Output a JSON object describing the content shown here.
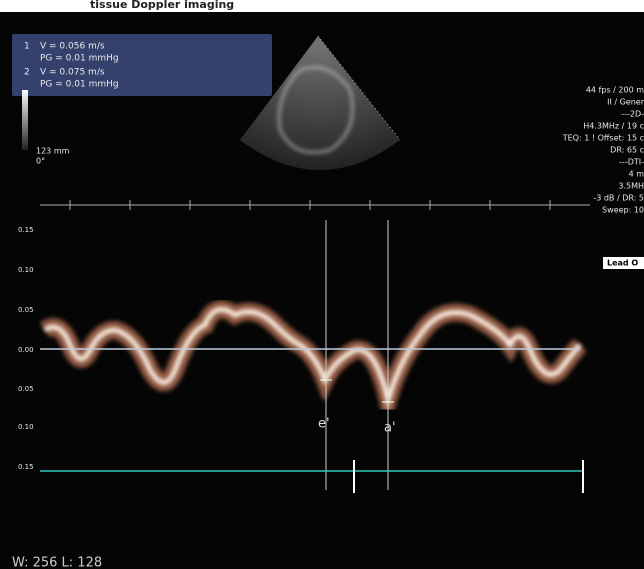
{
  "caption": "tissue Doppler imaging",
  "measurements": [
    {
      "index": "1",
      "velocity": "V = 0.056 m/s",
      "gradient": "PG = 0.01 mmHg"
    },
    {
      "index": "2",
      "velocity": "V = 0.075 m/s",
      "gradient": "PG = 0.01 mmHg"
    }
  ],
  "depth": "123 mm",
  "angle": "0°",
  "settings": [
    "44 fps / 200 m",
    "II / Gener",
    "---2D-",
    "H4.3MHz / 19 c",
    "TEQ: 1 ! Offset: 15 c",
    "DR: 65 c",
    "---DTI-",
    "4 m",
    "3.5MH",
    "-3 dB / DR: 5",
    "Sweep: 10"
  ],
  "lead_button": "Lead O",
  "scale_labels": [
    "0.15",
    "0.10",
    "0.05",
    "0.00",
    "0.05",
    "0.10",
    "0.15"
  ],
  "markers": [
    "e'",
    "a'"
  ],
  "footer": "W: 256 L: 128"
}
